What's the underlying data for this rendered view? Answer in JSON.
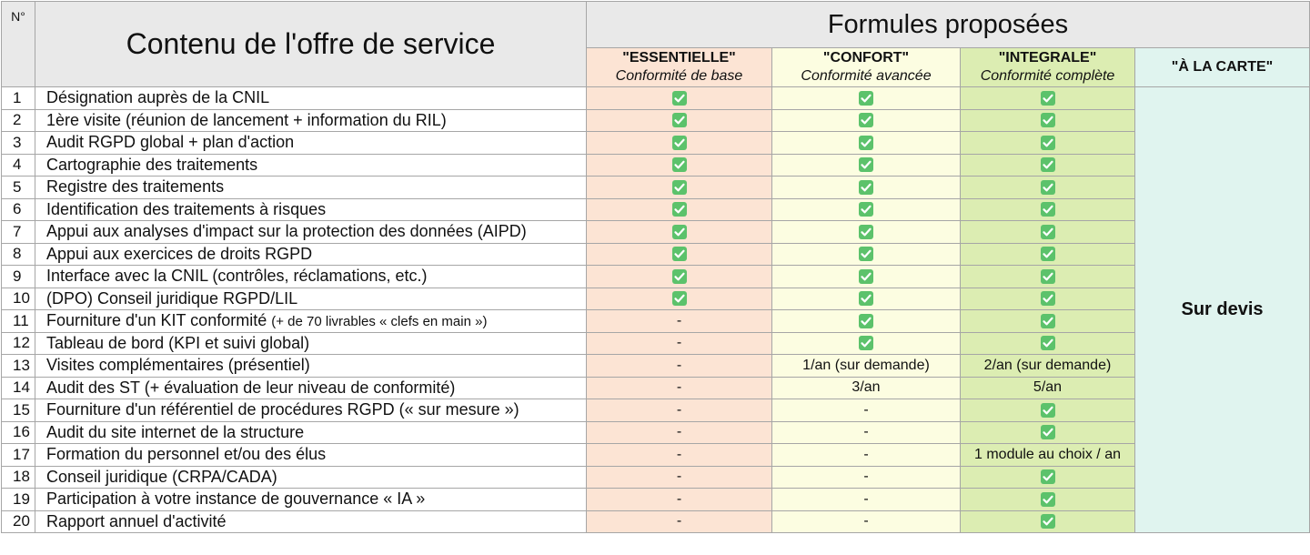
{
  "header": {
    "number": "N°",
    "content": "Contenu de l'offre de service",
    "formulas": "Formules proposées",
    "plans": [
      {
        "name": "\"ESSENTIELLE\"",
        "subtitle": "Conformité de base"
      },
      {
        "name": "\"CONFORT\"",
        "subtitle": "Conformité avancée"
      },
      {
        "name": "\"INTEGRALE\"",
        "subtitle": "Conformité complète"
      },
      {
        "name": "\"À LA CARTE\""
      }
    ]
  },
  "carte_cell": "Sur devis",
  "rows": [
    {
      "no": 1,
      "content": "Désignation auprès de la CNIL",
      "cells": [
        true,
        true,
        true
      ]
    },
    {
      "no": 2,
      "content": "1ère visite (réunion de lancement + information du RIL)",
      "cells": [
        true,
        true,
        true
      ]
    },
    {
      "no": 3,
      "content": "Audit RGPD global + plan d'action",
      "cells": [
        true,
        true,
        true
      ]
    },
    {
      "no": 4,
      "content": "Cartographie des traitements",
      "cells": [
        true,
        true,
        true
      ]
    },
    {
      "no": 5,
      "content": "Registre des traitements",
      "cells": [
        true,
        true,
        true
      ]
    },
    {
      "no": 6,
      "content": "Identification des traitements à risques",
      "cells": [
        true,
        true,
        true
      ]
    },
    {
      "no": 7,
      "content": "Appui aux analyses d'impact sur la protection des données (AIPD)",
      "cells": [
        true,
        true,
        true
      ]
    },
    {
      "no": 8,
      "content": "Appui aux exercices de droits RGPD",
      "cells": [
        true,
        true,
        true
      ]
    },
    {
      "no": 9,
      "content": "Interface avec la CNIL (contrôles, réclamations, etc.)",
      "cells": [
        true,
        true,
        true
      ]
    },
    {
      "no": 10,
      "content": "(DPO) Conseil juridique RGPD/LIL",
      "cells": [
        true,
        true,
        true
      ]
    },
    {
      "no": 11,
      "content": "Fourniture d'un KIT conformité",
      "note": "(+ de 70 livrables « clefs en main »)",
      "cells": [
        "-",
        true,
        true
      ]
    },
    {
      "no": 12,
      "content": "Tableau de bord (KPI et suivi global)",
      "cells": [
        "-",
        true,
        true
      ]
    },
    {
      "no": 13,
      "content": "Visites complémentaires (présentiel)",
      "cells": [
        "-",
        "1/an (sur demande)",
        "2/an (sur demande)"
      ]
    },
    {
      "no": 14,
      "content": "Audit des ST (+ évaluation de leur niveau de conformité)",
      "cells": [
        "-",
        "3/an",
        "5/an"
      ]
    },
    {
      "no": 15,
      "content": "Fourniture d'un référentiel de procédures RGPD (« sur mesure »)",
      "cells": [
        "-",
        "-",
        true
      ]
    },
    {
      "no": 16,
      "content": "Audit du site internet de la structure",
      "cells": [
        "-",
        "-",
        true
      ]
    },
    {
      "no": 17,
      "content": "Formation du personnel et/ou des élus",
      "cells": [
        "-",
        "-",
        "1 module au choix / an"
      ]
    },
    {
      "no": 18,
      "content": "Conseil juridique (CRPA/CADA)",
      "cells": [
        "-",
        "-",
        true
      ]
    },
    {
      "no": 19,
      "content": "Participation à votre instance de gouvernance « IA »",
      "cells": [
        "-",
        "-",
        true
      ]
    },
    {
      "no": 20,
      "content": "Rapport annuel d'activité",
      "cells": [
        "-",
        "-",
        true
      ]
    }
  ]
}
